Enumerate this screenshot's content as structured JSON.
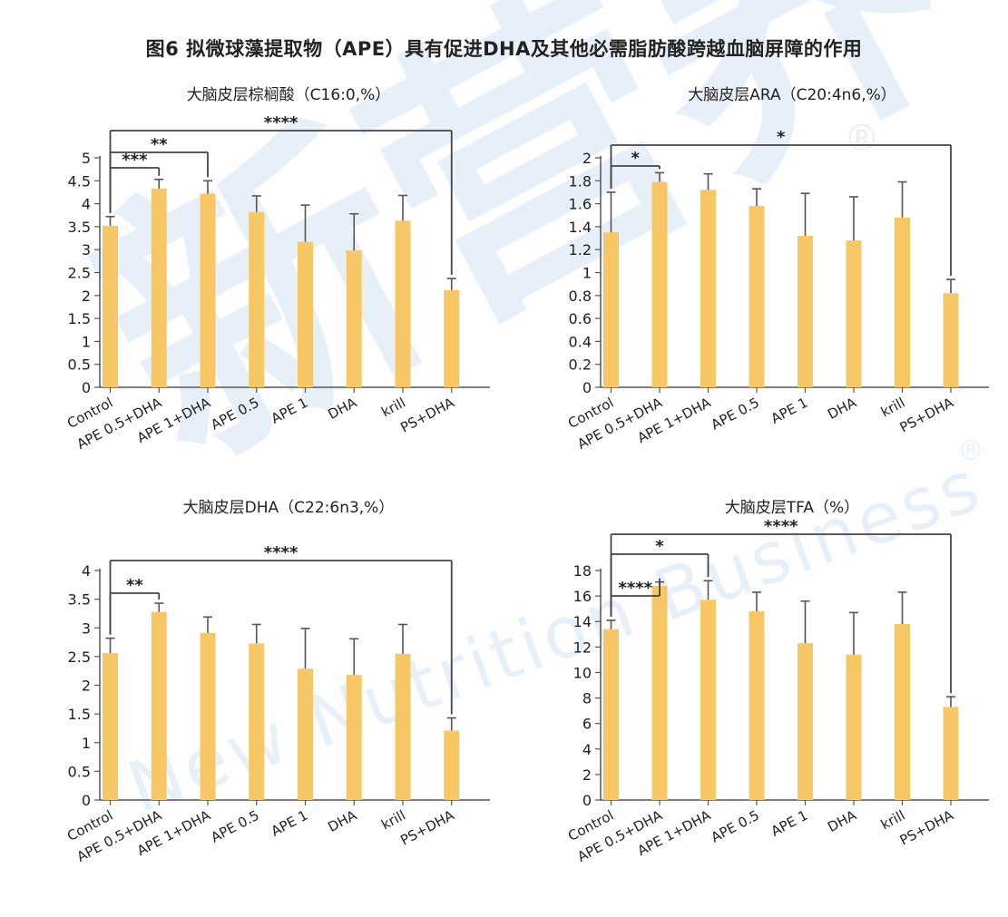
{
  "figure_title": "图6 拟微球藻提取物（APE）具有促进DHA及其他必需脂肪酸跨越血脑屏障的作用",
  "watermark": {
    "cn": "新营养",
    "en": "New Nutrition Business",
    "reg": "®"
  },
  "bar_color": "#f8c765",
  "axis_color": "#555555",
  "bracket_color": "#444444",
  "chart_data": [
    {
      "type": "bar",
      "title": "大脑皮层棕榈酸（C16:0,%）",
      "categories": [
        "Control",
        "APE 0.5+DHA",
        "APE 1+DHA",
        "APE 0.5",
        "APE 1",
        "DHA",
        "krill",
        "PS+DHA"
      ],
      "values": [
        3.52,
        4.33,
        4.22,
        3.82,
        3.17,
        2.98,
        3.63,
        2.12
      ],
      "errors": [
        0.2,
        0.2,
        0.28,
        0.35,
        0.8,
        0.8,
        0.55,
        0.25
      ],
      "ylim": [
        0,
        5
      ],
      "yticks": [
        0,
        0.5,
        1,
        1.5,
        2,
        2.5,
        3,
        3.5,
        4,
        4.5,
        5
      ],
      "ytick_labels": [
        "0",
        "0.5",
        "1",
        "1.5",
        "2",
        "2.5",
        "3",
        "3.5",
        "4",
        "4.5",
        "5"
      ],
      "significance": [
        {
          "from": 0,
          "to": 1,
          "label": "***"
        },
        {
          "from": 0,
          "to": 2,
          "label": "**"
        },
        {
          "from": 0,
          "to": 7,
          "label": "****"
        }
      ]
    },
    {
      "type": "bar",
      "title": "大脑皮层ARA（C20:4n6,%）",
      "categories": [
        "Control",
        "APE 0.5+DHA",
        "APE 1+DHA",
        "APE 0.5",
        "APE 1",
        "DHA",
        "krill",
        "PS+DHA"
      ],
      "values": [
        1.35,
        1.79,
        1.72,
        1.58,
        1.32,
        1.28,
        1.48,
        0.82
      ],
      "errors": [
        0.35,
        0.08,
        0.14,
        0.15,
        0.37,
        0.38,
        0.31,
        0.12
      ],
      "ylim": [
        0,
        2
      ],
      "yticks": [
        0,
        0.2,
        0.4,
        0.6,
        0.8,
        1,
        1.2,
        1.4,
        1.6,
        1.8,
        2
      ],
      "ytick_labels": [
        "0",
        "0.2",
        "0.4",
        "0.6",
        "0.8",
        "1",
        "1.2",
        "1.4",
        "1.6",
        "1.8",
        "2"
      ],
      "significance": [
        {
          "from": 0,
          "to": 1,
          "label": "*"
        },
        {
          "from": 0,
          "to": 7,
          "label": "*"
        }
      ]
    },
    {
      "type": "bar",
      "title": "大脑皮层DHA（C22:6n3,%）",
      "categories": [
        "Control",
        "APE 0.5+DHA",
        "APE 1+DHA",
        "APE 0.5",
        "APE 1",
        "DHA",
        "krill",
        "PS+DHA"
      ],
      "values": [
        2.56,
        3.28,
        2.91,
        2.73,
        2.29,
        2.18,
        2.55,
        1.21
      ],
      "errors": [
        0.26,
        0.15,
        0.28,
        0.33,
        0.7,
        0.63,
        0.51,
        0.22
      ],
      "ylim": [
        0,
        4
      ],
      "yticks": [
        0,
        0.5,
        1,
        1.5,
        2,
        2.5,
        3,
        3.5,
        4
      ],
      "ytick_labels": [
        "0",
        "0.5",
        "1",
        "1.5",
        "2",
        "2.5",
        "3",
        "3.5",
        "4"
      ],
      "significance": [
        {
          "from": 0,
          "to": 1,
          "label": "**"
        },
        {
          "from": 0,
          "to": 7,
          "label": "****"
        }
      ]
    },
    {
      "type": "bar",
      "title": "大脑皮层TFA（%）",
      "categories": [
        "Control",
        "APE 0.5+DHA",
        "APE 1+DHA",
        "APE 0.5",
        "APE 1",
        "DHA",
        "krill",
        "PS+DHA"
      ],
      "values": [
        13.4,
        16.8,
        15.7,
        14.8,
        12.3,
        11.4,
        13.8,
        7.3
      ],
      "errors": [
        0.7,
        0.3,
        1.5,
        1.5,
        3.3,
        3.3,
        2.5,
        0.8
      ],
      "ylim": [
        0,
        18
      ],
      "yticks": [
        0,
        2,
        4,
        6,
        8,
        10,
        12,
        14,
        16,
        18
      ],
      "ytick_labels": [
        "0",
        "2",
        "4",
        "6",
        "8",
        "10",
        "12",
        "14",
        "16",
        "18"
      ],
      "significance": [
        {
          "from": 0,
          "to": 1,
          "label": "****"
        },
        {
          "from": 0,
          "to": 2,
          "label": "*"
        },
        {
          "from": 0,
          "to": 7,
          "label": "****"
        }
      ]
    }
  ]
}
